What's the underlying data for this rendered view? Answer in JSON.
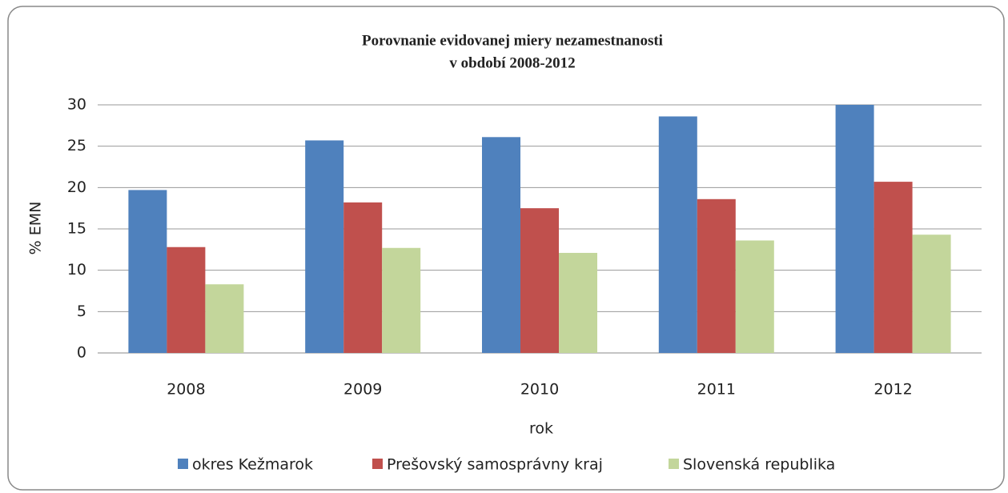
{
  "chart_data": {
    "type": "bar",
    "title": [
      "Porovnanie evidovanej miery nezamestnanosti",
      "v období  2008-2012"
    ],
    "x_label": "rok",
    "y_label": "% EMN",
    "categories": [
      "2008",
      "2009",
      "2010",
      "2011",
      "2012"
    ],
    "series": [
      {
        "name": "okres Kežmarok",
        "color": "#4f81bd",
        "values": [
          19.7,
          25.7,
          26.1,
          28.6,
          30.0
        ]
      },
      {
        "name": "Prešovský samosprávny kraj",
        "color": "#c0504d",
        "values": [
          12.8,
          18.2,
          17.5,
          18.6,
          20.7
        ]
      },
      {
        "name": "Slovenská republika",
        "color": "#c3d69b",
        "values": [
          8.3,
          12.7,
          12.1,
          13.6,
          14.3
        ]
      }
    ],
    "ylim": [
      0,
      30
    ],
    "yticks": [
      0,
      5,
      10,
      15,
      20,
      25,
      30
    ],
    "grid": true,
    "legend": "bottom"
  }
}
